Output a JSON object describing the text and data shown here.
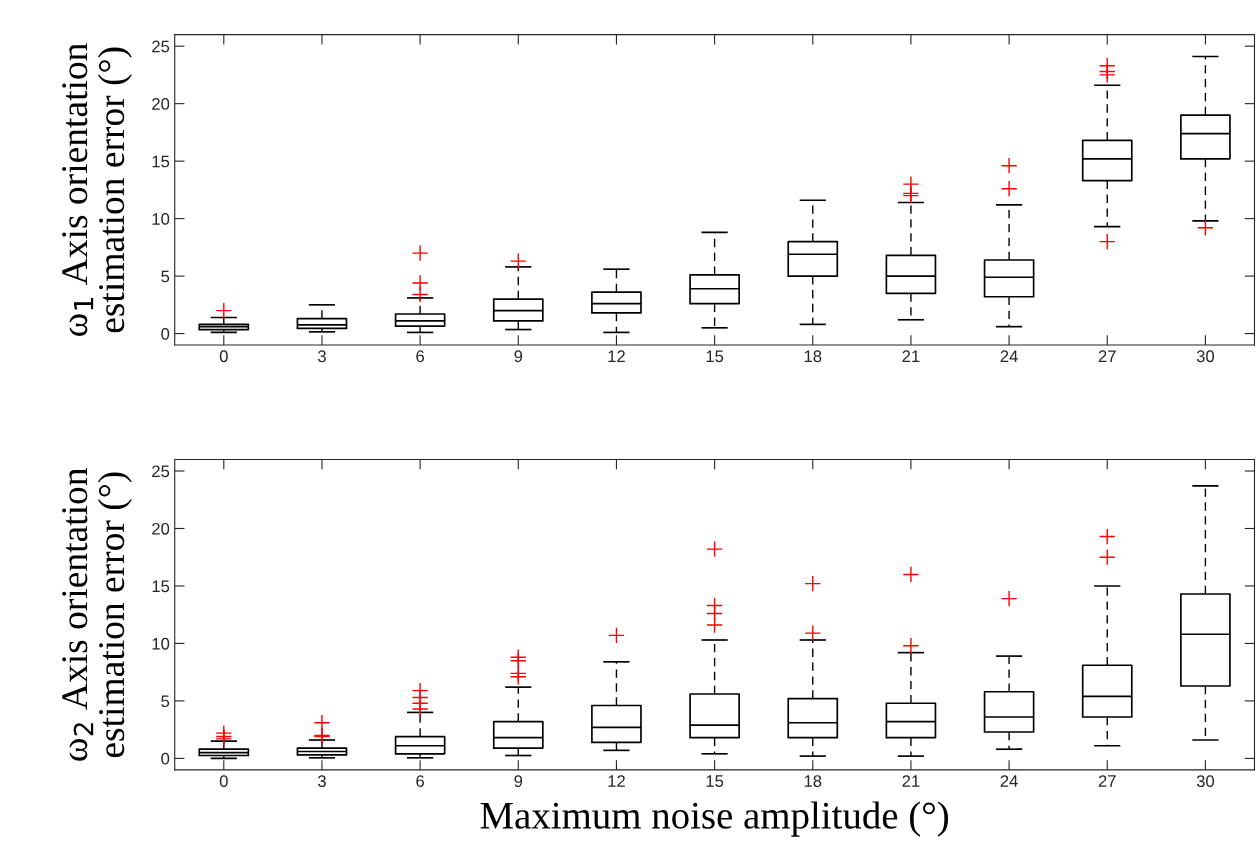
{
  "chart_data": [
    {
      "type": "box",
      "categories": [
        "0",
        "3",
        "6",
        "9",
        "12",
        "15",
        "18",
        "21",
        "24",
        "27",
        "30"
      ],
      "ylabel": "ω$_{1}$ Axis orientation\nestimation error (°)",
      "ylim": [
        -1,
        26
      ],
      "yticks": [
        0,
        5,
        10,
        15,
        20,
        25
      ],
      "boxes": [
        {
          "low": 0.1,
          "q1": 0.35,
          "median": 0.6,
          "q3": 0.8,
          "high": 1.4,
          "outliers": [
            2.0
          ]
        },
        {
          "low": 0.15,
          "q1": 0.45,
          "median": 0.75,
          "q3": 1.3,
          "high": 2.5
        },
        {
          "low": 0.1,
          "q1": 0.65,
          "median": 1.1,
          "q3": 1.7,
          "high": 3.1,
          "outliers": [
            3.4,
            4.4,
            7.0
          ]
        },
        {
          "low": 0.35,
          "q1": 1.1,
          "median": 2.0,
          "q3": 3.0,
          "high": 5.8,
          "outliers": [
            6.3
          ]
        },
        {
          "low": 0.1,
          "q1": 1.8,
          "median": 2.6,
          "q3": 3.6,
          "high": 5.6
        },
        {
          "low": 0.5,
          "q1": 2.6,
          "median": 3.9,
          "q3": 5.1,
          "high": 8.8
        },
        {
          "low": 0.8,
          "q1": 5.0,
          "median": 6.9,
          "q3": 8.0,
          "high": 11.6
        },
        {
          "low": 1.2,
          "q1": 3.5,
          "median": 5.0,
          "q3": 6.8,
          "high": 11.4,
          "outliers": [
            12.0,
            12.2,
            13.0
          ]
        },
        {
          "low": 0.6,
          "q1": 3.2,
          "median": 4.9,
          "q3": 6.4,
          "high": 11.2,
          "outliers": [
            12.6,
            14.6
          ]
        },
        {
          "low": 9.3,
          "q1": 13.3,
          "median": 15.2,
          "q3": 16.8,
          "high": 21.6,
          "outliers": [
            8.0,
            22.5,
            22.8,
            23.3
          ]
        },
        {
          "low": 9.8,
          "q1": 15.2,
          "median": 17.4,
          "q3": 19.0,
          "high": 24.1,
          "outliers": [
            9.2
          ]
        }
      ]
    },
    {
      "type": "box",
      "categories": [
        "0",
        "3",
        "6",
        "9",
        "12",
        "15",
        "18",
        "21",
        "24",
        "27",
        "30"
      ],
      "xlabel": "Maximum noise amplitude (°)",
      "ylabel": "ω$_{2}$ Axis orientation\nestimation error (°)",
      "ylim": [
        -1,
        26
      ],
      "yticks": [
        0,
        5,
        10,
        15,
        20,
        25
      ],
      "boxes": [
        {
          "low": 0.0,
          "q1": 0.25,
          "median": 0.5,
          "q3": 0.8,
          "high": 1.5,
          "outliers": [
            1.7,
            1.9,
            2.2
          ]
        },
        {
          "low": 0.05,
          "q1": 0.3,
          "median": 0.6,
          "q3": 0.9,
          "high": 1.6,
          "outliers": [
            1.9,
            2.0,
            3.1
          ]
        },
        {
          "low": 0.05,
          "q1": 0.4,
          "median": 1.1,
          "q3": 1.9,
          "high": 4.0,
          "outliers": [
            4.3,
            4.8,
            5.3,
            5.9
          ]
        },
        {
          "low": 0.25,
          "q1": 0.9,
          "median": 1.8,
          "q3": 3.2,
          "high": 6.2,
          "outliers": [
            7.1,
            7.4,
            8.5,
            8.8
          ]
        },
        {
          "low": 0.7,
          "q1": 1.4,
          "median": 2.7,
          "q3": 4.6,
          "high": 8.4,
          "outliers": [
            10.7
          ]
        },
        {
          "low": 0.4,
          "q1": 1.8,
          "median": 2.9,
          "q3": 5.6,
          "high": 10.3,
          "outliers": [
            11.6,
            12.6,
            13.3,
            18.2
          ]
        },
        {
          "low": 0.2,
          "q1": 1.8,
          "median": 3.1,
          "q3": 5.2,
          "high": 10.3,
          "outliers": [
            10.9,
            15.2
          ]
        },
        {
          "low": 0.2,
          "q1": 1.8,
          "median": 3.2,
          "q3": 4.8,
          "high": 9.2,
          "outliers": [
            9.8,
            16.0
          ]
        },
        {
          "low": 0.8,
          "q1": 2.3,
          "median": 3.6,
          "q3": 5.8,
          "high": 8.9,
          "outliers": [
            13.9
          ]
        },
        {
          "low": 1.1,
          "q1": 3.6,
          "median": 5.4,
          "q3": 8.1,
          "high": 15.0,
          "outliers": [
            17.5,
            19.3
          ]
        },
        {
          "low": 1.6,
          "q1": 6.3,
          "median": 10.8,
          "q3": 14.3,
          "high": 23.7
        }
      ]
    }
  ]
}
